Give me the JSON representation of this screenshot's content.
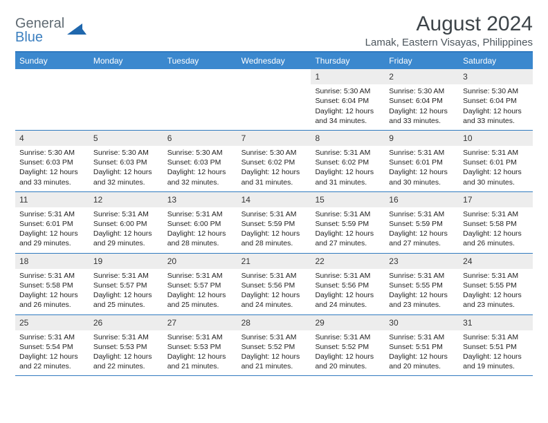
{
  "brand": {
    "part1": "General",
    "part2": "Blue"
  },
  "title": "August 2024",
  "location": "Lamak, Eastern Visayas, Philippines",
  "colors": {
    "header_bg": "#3b88ce",
    "header_text": "#ffffff",
    "rule": "#2e79bf",
    "daybar": "#ededed",
    "text": "#222222",
    "title_color": "#3d4449",
    "logo_gray": "#5f6a72",
    "logo_blue": "#3b7fbf"
  },
  "days_of_week": [
    "Sunday",
    "Monday",
    "Tuesday",
    "Wednesday",
    "Thursday",
    "Friday",
    "Saturday"
  ],
  "weeks": [
    [
      null,
      null,
      null,
      null,
      {
        "n": "1",
        "sr": "5:30 AM",
        "ss": "6:04 PM",
        "dl": "12 hours and 34 minutes."
      },
      {
        "n": "2",
        "sr": "5:30 AM",
        "ss": "6:04 PM",
        "dl": "12 hours and 33 minutes."
      },
      {
        "n": "3",
        "sr": "5:30 AM",
        "ss": "6:04 PM",
        "dl": "12 hours and 33 minutes."
      }
    ],
    [
      {
        "n": "4",
        "sr": "5:30 AM",
        "ss": "6:03 PM",
        "dl": "12 hours and 33 minutes."
      },
      {
        "n": "5",
        "sr": "5:30 AM",
        "ss": "6:03 PM",
        "dl": "12 hours and 32 minutes."
      },
      {
        "n": "6",
        "sr": "5:30 AM",
        "ss": "6:03 PM",
        "dl": "12 hours and 32 minutes."
      },
      {
        "n": "7",
        "sr": "5:30 AM",
        "ss": "6:02 PM",
        "dl": "12 hours and 31 minutes."
      },
      {
        "n": "8",
        "sr": "5:31 AM",
        "ss": "6:02 PM",
        "dl": "12 hours and 31 minutes."
      },
      {
        "n": "9",
        "sr": "5:31 AM",
        "ss": "6:01 PM",
        "dl": "12 hours and 30 minutes."
      },
      {
        "n": "10",
        "sr": "5:31 AM",
        "ss": "6:01 PM",
        "dl": "12 hours and 30 minutes."
      }
    ],
    [
      {
        "n": "11",
        "sr": "5:31 AM",
        "ss": "6:01 PM",
        "dl": "12 hours and 29 minutes."
      },
      {
        "n": "12",
        "sr": "5:31 AM",
        "ss": "6:00 PM",
        "dl": "12 hours and 29 minutes."
      },
      {
        "n": "13",
        "sr": "5:31 AM",
        "ss": "6:00 PM",
        "dl": "12 hours and 28 minutes."
      },
      {
        "n": "14",
        "sr": "5:31 AM",
        "ss": "5:59 PM",
        "dl": "12 hours and 28 minutes."
      },
      {
        "n": "15",
        "sr": "5:31 AM",
        "ss": "5:59 PM",
        "dl": "12 hours and 27 minutes."
      },
      {
        "n": "16",
        "sr": "5:31 AM",
        "ss": "5:59 PM",
        "dl": "12 hours and 27 minutes."
      },
      {
        "n": "17",
        "sr": "5:31 AM",
        "ss": "5:58 PM",
        "dl": "12 hours and 26 minutes."
      }
    ],
    [
      {
        "n": "18",
        "sr": "5:31 AM",
        "ss": "5:58 PM",
        "dl": "12 hours and 26 minutes."
      },
      {
        "n": "19",
        "sr": "5:31 AM",
        "ss": "5:57 PM",
        "dl": "12 hours and 25 minutes."
      },
      {
        "n": "20",
        "sr": "5:31 AM",
        "ss": "5:57 PM",
        "dl": "12 hours and 25 minutes."
      },
      {
        "n": "21",
        "sr": "5:31 AM",
        "ss": "5:56 PM",
        "dl": "12 hours and 24 minutes."
      },
      {
        "n": "22",
        "sr": "5:31 AM",
        "ss": "5:56 PM",
        "dl": "12 hours and 24 minutes."
      },
      {
        "n": "23",
        "sr": "5:31 AM",
        "ss": "5:55 PM",
        "dl": "12 hours and 23 minutes."
      },
      {
        "n": "24",
        "sr": "5:31 AM",
        "ss": "5:55 PM",
        "dl": "12 hours and 23 minutes."
      }
    ],
    [
      {
        "n": "25",
        "sr": "5:31 AM",
        "ss": "5:54 PM",
        "dl": "12 hours and 22 minutes."
      },
      {
        "n": "26",
        "sr": "5:31 AM",
        "ss": "5:53 PM",
        "dl": "12 hours and 22 minutes."
      },
      {
        "n": "27",
        "sr": "5:31 AM",
        "ss": "5:53 PM",
        "dl": "12 hours and 21 minutes."
      },
      {
        "n": "28",
        "sr": "5:31 AM",
        "ss": "5:52 PM",
        "dl": "12 hours and 21 minutes."
      },
      {
        "n": "29",
        "sr": "5:31 AM",
        "ss": "5:52 PM",
        "dl": "12 hours and 20 minutes."
      },
      {
        "n": "30",
        "sr": "5:31 AM",
        "ss": "5:51 PM",
        "dl": "12 hours and 20 minutes."
      },
      {
        "n": "31",
        "sr": "5:31 AM",
        "ss": "5:51 PM",
        "dl": "12 hours and 19 minutes."
      }
    ]
  ],
  "labels": {
    "sunrise": "Sunrise: ",
    "sunset": "Sunset: ",
    "daylight": "Daylight: "
  }
}
